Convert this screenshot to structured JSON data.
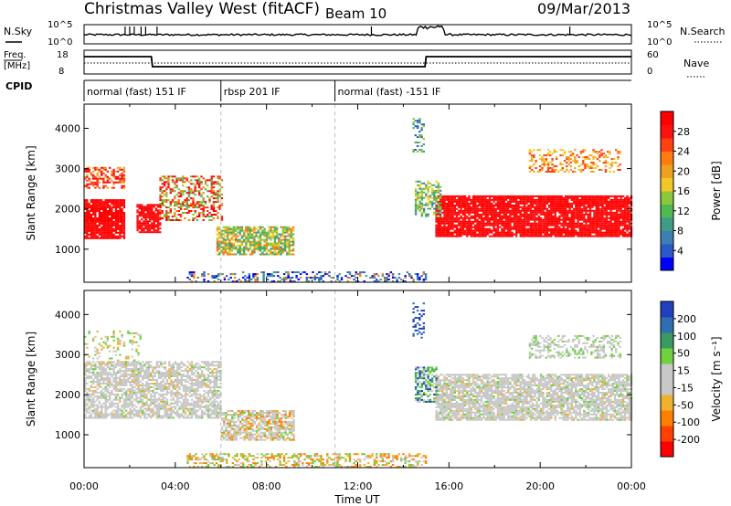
{
  "header": {
    "title": "Christmas Valley West (fitACF)",
    "beam": "Beam 10",
    "date": "09/Mar/2013"
  },
  "summary_panels": {
    "nsky_label": "N.Sky",
    "nsky_ticks": [
      "10^5",
      "10^0"
    ],
    "nsearch_label": "N.Search",
    "nsearch_ticks": [
      "10^5",
      "10^0"
    ],
    "freq_label_1": "Freq.",
    "freq_label_2": "[MHz]",
    "freq_ticks": [
      "18",
      "8"
    ],
    "nave_label": "Nave",
    "nave_ticks": [
      "60",
      "0"
    ],
    "cpid_label": "CPID",
    "cpid_segments": [
      {
        "label": "normal (fast) 151 IF",
        "start_h": 0,
        "end_h": 6
      },
      {
        "label": "rbsp 201 IF",
        "start_h": 6,
        "end_h": 11
      },
      {
        "label": "normal (fast) -151 IF",
        "start_h": 11,
        "end_h": 24
      }
    ]
  },
  "chart_data": [
    {
      "type": "heatmap",
      "name": "power",
      "ylabel": "Slant Range [km]",
      "yticks": [
        1000,
        2000,
        3000,
        4000
      ],
      "ylim": [
        180,
        4600
      ],
      "xlim": [
        0,
        24
      ],
      "colorbar_label": "Power [dB]",
      "colorbar_ticks": [
        "28",
        "24",
        "20",
        "16",
        "12",
        "8",
        "4"
      ],
      "colorbar_colors": [
        "#0000ff",
        "#2b57c8",
        "#3e7fb3",
        "#3f9a86",
        "#4fb850",
        "#8cc83b",
        "#f0c828",
        "#f0a020",
        "#ff7a10",
        "#ff4010",
        "#ff1010",
        "#ff0000"
      ]
    },
    {
      "type": "heatmap",
      "name": "velocity",
      "ylabel": "Slant Range [km]",
      "yticks": [
        1000,
        2000,
        3000,
        4000
      ],
      "ylim": [
        180,
        4600
      ],
      "xlim": [
        0,
        24
      ],
      "colorbar_label": "Velocity [m s⁻¹]",
      "colorbar_ticks": [
        "200",
        "100",
        "50",
        "15",
        "-15",
        "-50",
        "-100",
        "-200"
      ],
      "colorbar_colors": [
        "#ff0000",
        "#ff4000",
        "#ff8000",
        "#f0b030",
        "#c8c8c8",
        "#c8c8c8",
        "#70d040",
        "#3a9a60",
        "#2f6fb0",
        "#2040c0"
      ]
    }
  ],
  "xaxis": {
    "label": "Time UT",
    "ticks": [
      "00:00",
      "04:00",
      "08:00",
      "12:00",
      "16:00",
      "20:00",
      "00:00"
    ]
  }
}
